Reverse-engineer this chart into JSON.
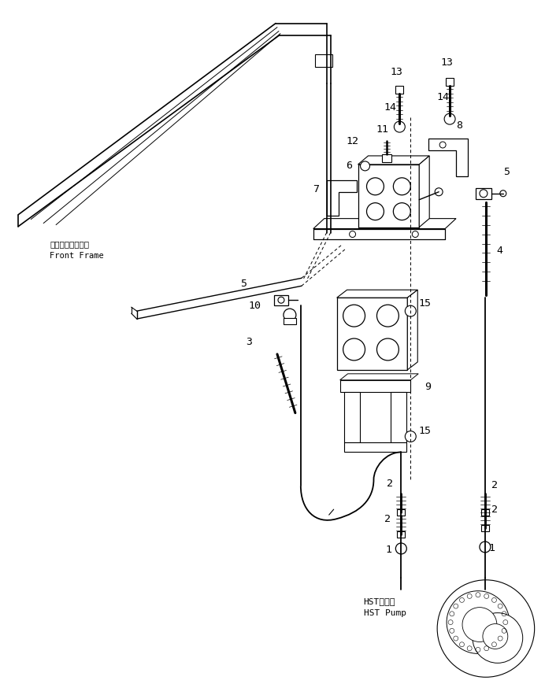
{
  "bg_color": "#ffffff",
  "line_color": "#000000",
  "fig_width": 6.92,
  "fig_height": 8.69,
  "dpi": 100,
  "labels": {
    "front_frame_jp": "フロントフレーム",
    "front_frame_en": "Front Frame",
    "hst_pump_jp": "HSTポンプ",
    "hst_pump_en": "HST Pump"
  }
}
